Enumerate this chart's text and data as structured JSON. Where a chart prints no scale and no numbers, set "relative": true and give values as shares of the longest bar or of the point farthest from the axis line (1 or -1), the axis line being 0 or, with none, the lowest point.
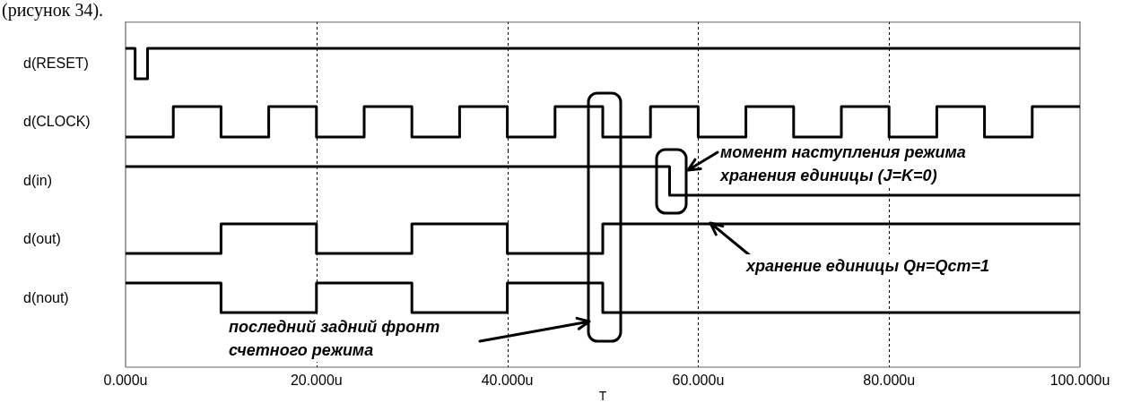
{
  "chart_data": [
    {
      "type": "step",
      "ylabel": "d(RESET)",
      "relative": true,
      "tick_labels": false,
      "grid": "x",
      "annotations": [
        "(рисунок 34)."
      ],
      "xlim": [
        0,
        100
      ],
      "series": [
        {
          "color": "#000000",
          "x": [
            0,
            1,
            2.3,
            100
          ],
          "values": [
            1,
            0,
            1,
            1
          ]
        }
      ]
    },
    {
      "type": "step",
      "ylabel": "d(CLOCK)",
      "relative": true,
      "tick_labels": false,
      "grid": "x",
      "xlim": [
        0,
        100
      ],
      "series": [
        {
          "color": "#000000",
          "x": [
            0,
            5,
            10,
            15,
            20,
            25,
            30,
            35,
            40,
            45,
            50,
            55,
            60,
            65,
            70,
            75,
            80,
            85,
            90,
            95,
            100
          ],
          "values": [
            0,
            1,
            0,
            1,
            0,
            1,
            0,
            1,
            0,
            1,
            0,
            1,
            0,
            1,
            0,
            1,
            0,
            1,
            0,
            1,
            1
          ]
        }
      ]
    },
    {
      "type": "step",
      "ylabel": "d(in)",
      "relative": true,
      "tick_labels": false,
      "grid": "x",
      "annotations": [
        "момент наступления режима\nхранения единицы (J=K=0)"
      ],
      "xlim": [
        0,
        100
      ],
      "series": [
        {
          "color": "#000000",
          "x": [
            0,
            57,
            100
          ],
          "values": [
            1,
            0,
            0
          ]
        }
      ]
    },
    {
      "type": "step",
      "ylabel": "d(out)",
      "relative": true,
      "tick_labels": false,
      "grid": "x",
      "annotations": [
        "хранение единицы Qн=Qст=1"
      ],
      "xlim": [
        0,
        100
      ],
      "series": [
        {
          "color": "#000000",
          "x": [
            0,
            10,
            20,
            30,
            40,
            50,
            100
          ],
          "values": [
            0,
            1,
            0,
            1,
            0,
            1,
            1
          ]
        }
      ]
    },
    {
      "type": "step",
      "ylabel": "d(nout)",
      "xlabel": "T",
      "relative": true,
      "tick_labels": "x",
      "grid": "x",
      "annotations": [
        "последний задний фронт\nсчетного режима"
      ],
      "xlim": [
        0,
        100
      ],
      "xticks": [
        {
          "value": 0,
          "label": "0.000u"
        },
        {
          "value": 20,
          "label": "20.000u"
        },
        {
          "value": 40,
          "label": "40.000u"
        },
        {
          "value": 60,
          "label": "60.000u"
        },
        {
          "value": 80,
          "label": "80.000u"
        },
        {
          "value": 100,
          "label": "100.000u"
        }
      ],
      "series": [
        {
          "color": "#000000",
          "x": [
            0,
            10,
            20,
            30,
            40,
            50,
            100
          ],
          "values": [
            1,
            0,
            1,
            0,
            1,
            0,
            0
          ]
        }
      ]
    }
  ]
}
